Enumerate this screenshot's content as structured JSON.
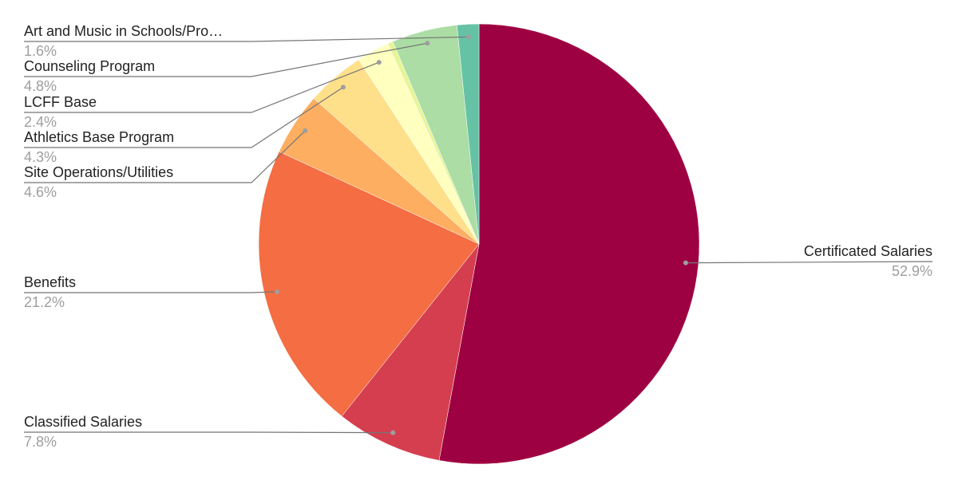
{
  "chart_data": {
    "type": "pie",
    "categories": [
      "Certificated Salaries",
      "Classified Salaries",
      "Benefits",
      "Site Operations/Utilities",
      "Athletics Base Program",
      "LCFF Base",
      null,
      "Counseling Program",
      "Art and Music in Schools/Pro…"
    ],
    "values": [
      52.9,
      7.8,
      21.2,
      4.6,
      4.3,
      2.4,
      0.4,
      4.8,
      1.6
    ],
    "value_labels": [
      "52.9%",
      "7.8%",
      "21.2%",
      "4.6%",
      "4.3%",
      "2.4%",
      null,
      "4.8%",
      "1.6%"
    ],
    "colors": [
      "#9e0142",
      "#d53e4f",
      "#f46d43",
      "#fdae61",
      "#fee08b",
      "#ffffbf",
      "#e6f598",
      "#abdda4",
      "#66c2a5"
    ]
  }
}
